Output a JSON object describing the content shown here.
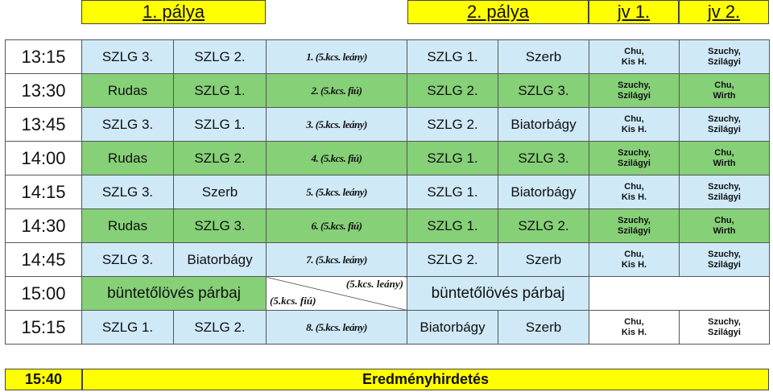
{
  "header": {
    "court1": "1. pálya",
    "court2": "2. pálya",
    "jv1": "jv 1.",
    "jv2": "jv 2."
  },
  "rows": [
    {
      "time": "13:15",
      "t1a": "SZLG 3.",
      "t1b": "SZLG 2.",
      "game": "1. (5.kcs. leány)",
      "t2a": "SZLG 1.",
      "t2b": "Szerb",
      "jv1": [
        "Chu,",
        "Kis H."
      ],
      "jv2": [
        "Szuchy,",
        "Szilágyi"
      ]
    },
    {
      "time": "13:30",
      "t1a": "Rudas",
      "t1b": "SZLG 1.",
      "game": "2. (5.kcs. fiú)",
      "t2a": "SZLG 2.",
      "t2b": "SZLG 3.",
      "jv1": [
        "Szuchy,",
        "Szilágyi"
      ],
      "jv2": [
        "Chu,",
        "Wirth"
      ]
    },
    {
      "time": "13:45",
      "t1a": "SZLG 3.",
      "t1b": "SZLG 1.",
      "game": "3. (5.kcs. leány)",
      "t2a": "SZLG 2.",
      "t2b": "Biatorbágy",
      "jv1": [
        "Chu,",
        "Kis H."
      ],
      "jv2": [
        "Szuchy,",
        "Szilágyi"
      ]
    },
    {
      "time": "14:00",
      "t1a": "Rudas",
      "t1b": "SZLG 2.",
      "game": "4. (5.kcs. fiú)",
      "t2a": "SZLG 1.",
      "t2b": "SZLG 3.",
      "jv1": [
        "Szuchy,",
        "Szilágyi"
      ],
      "jv2": [
        "Chu,",
        "Wirth"
      ]
    },
    {
      "time": "14:15",
      "t1a": "SZLG 3.",
      "t1b": "Szerb",
      "game": "5. (5.kcs. leány)",
      "t2a": "SZLG 1.",
      "t2b": "Biatorbágy",
      "jv1": [
        "Chu,",
        "Kis H."
      ],
      "jv2": [
        "Szuchy,",
        "Szilágyi"
      ]
    },
    {
      "time": "14:30",
      "t1a": "Rudas",
      "t1b": "SZLG 3.",
      "game": "6. (5.kcs. fiú)",
      "t2a": "SZLG 1.",
      "t2b": "SZLG 2.",
      "jv1": [
        "Szuchy,",
        "Szilágyi"
      ],
      "jv2": [
        "Chu,",
        "Wirth"
      ]
    },
    {
      "time": "14:45",
      "t1a": "SZLG 3.",
      "t1b": "Biatorbágy",
      "game": "7. (5.kcs. leány)",
      "t2a": "SZLG 2.",
      "t2b": "Szerb",
      "jv1": [
        "Chu,",
        "Kis H."
      ],
      "jv2": [
        "Szuchy,",
        "Szilágyi"
      ]
    }
  ],
  "penalty_row": {
    "time": "15:00",
    "court1": "büntetőlövés párbaj",
    "diag_top": "(5.kcs. leány)",
    "diag_bottom": "(5.kcs. fiú)",
    "court2": "büntetőlövés párbaj"
  },
  "last_row": {
    "time": "15:15",
    "t1a": "SZLG 1.",
    "t1b": "SZLG 2.",
    "game": "8. (5.kcs. leány)",
    "t2a": "Biatorbágy",
    "t2b": "Szerb",
    "jv1": [
      "Chu,",
      "Kis H."
    ],
    "jv2": [
      "Szuchy,",
      "Szilágyi"
    ]
  },
  "footer": {
    "time": "15:40",
    "label": "Eredményhirdetés"
  },
  "colors": {
    "header_yellow": "#ffff00",
    "light_blue": "#cfe9f7",
    "green": "#86d078"
  }
}
